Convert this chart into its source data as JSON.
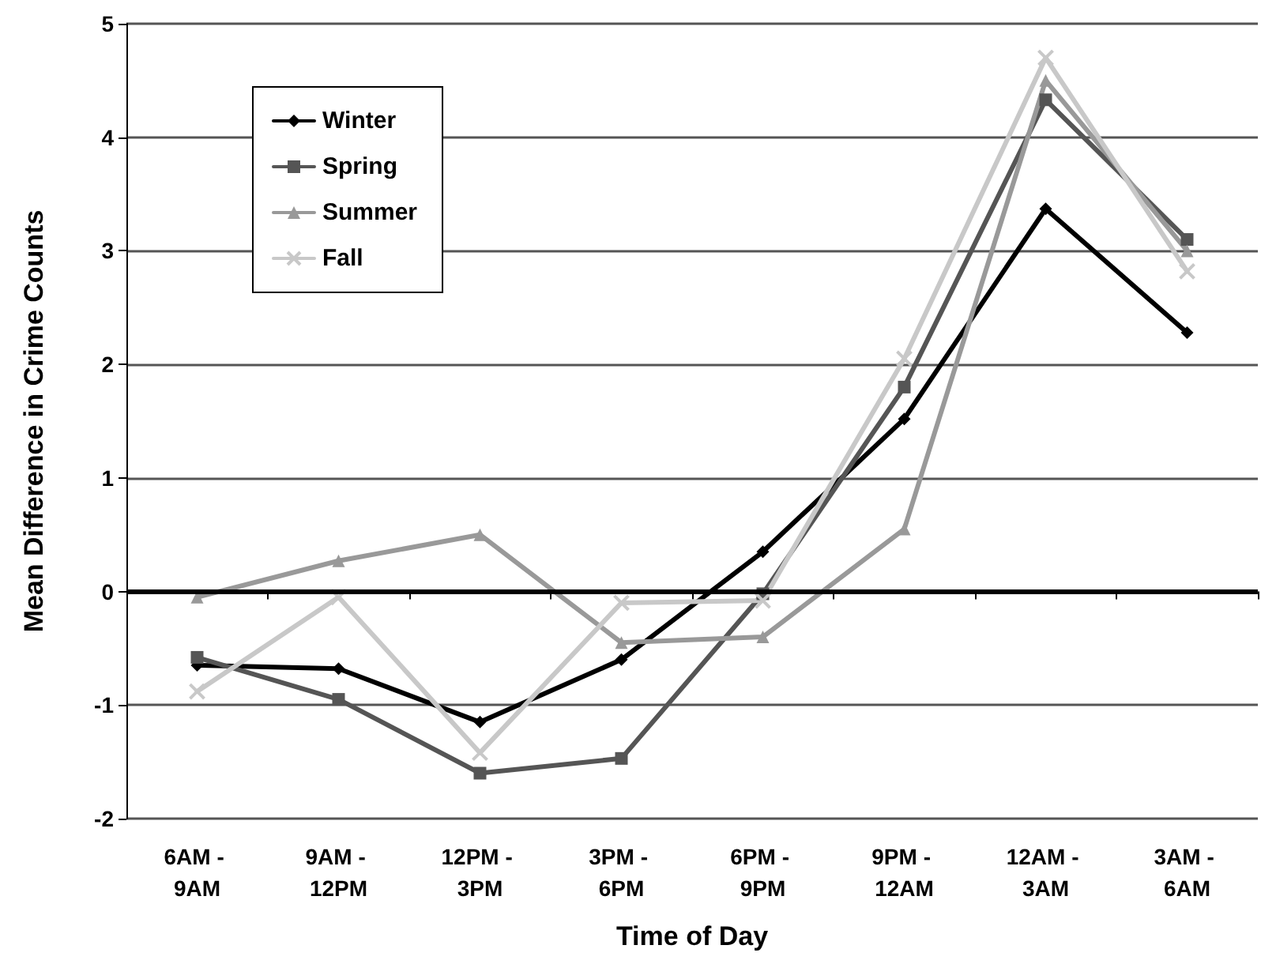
{
  "chart_data": {
    "type": "line",
    "xlabel": "Time of Day",
    "ylabel": "Mean Difference in Crime Counts",
    "categories": [
      "6AM - 9AM",
      "9AM - 12PM",
      "12PM - 3PM",
      "3PM - 6PM",
      "6PM - 9PM",
      "9PM - 12AM",
      "12AM - 3AM",
      "3AM - 6AM"
    ],
    "series": [
      {
        "name": "Winter",
        "color": "#000000",
        "marker": "diamond",
        "values": [
          -0.65,
          -0.68,
          -1.15,
          -0.6,
          0.35,
          1.52,
          3.37,
          2.28
        ]
      },
      {
        "name": "Spring",
        "color": "#555555",
        "marker": "square",
        "values": [
          -0.58,
          -0.95,
          -1.6,
          -1.47,
          -0.02,
          1.8,
          4.33,
          3.1
        ]
      },
      {
        "name": "Summer",
        "color": "#999999",
        "marker": "triangle",
        "values": [
          -0.05,
          0.27,
          0.5,
          -0.45,
          -0.4,
          0.55,
          4.5,
          3.0
        ]
      },
      {
        "name": "Fall",
        "color": "#c8c8c8",
        "marker": "cross",
        "values": [
          -0.88,
          -0.05,
          -1.42,
          -0.1,
          -0.08,
          2.05,
          4.7,
          2.82
        ]
      }
    ],
    "ylim": [
      -2,
      5
    ],
    "yticks": [
      -2,
      -1,
      0,
      1,
      2,
      3,
      4,
      5
    ],
    "grid": "y",
    "legend": "top left",
    "ref_lines": [
      {
        "axis": "y",
        "value": 0,
        "color": "#000000"
      }
    ]
  }
}
